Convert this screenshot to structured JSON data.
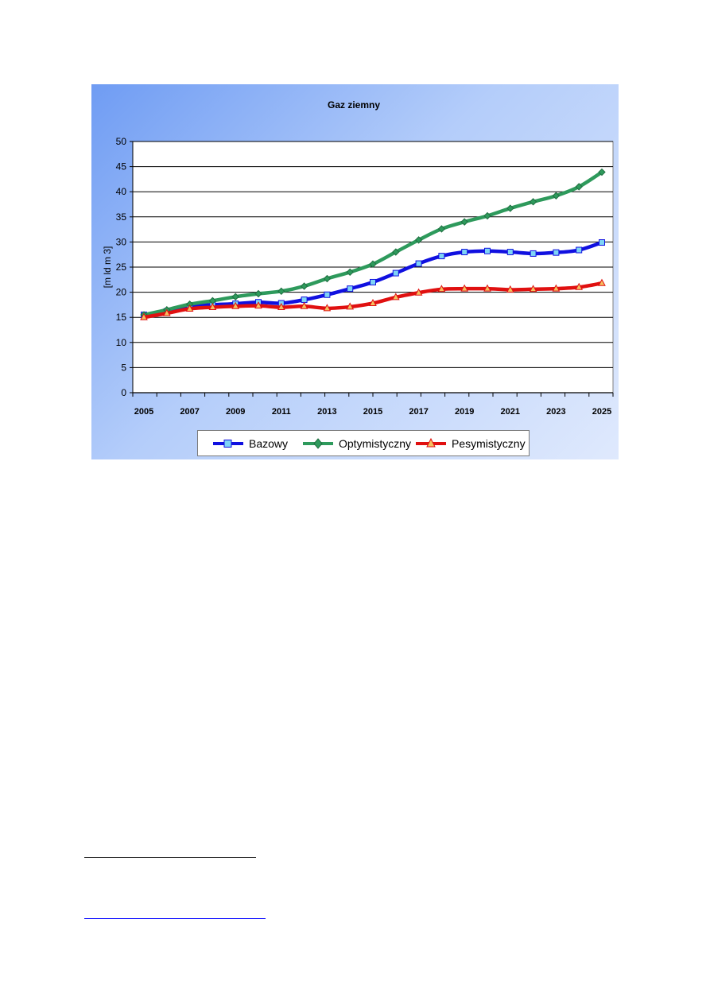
{
  "chart_data": {
    "type": "line",
    "title": "Gaz ziemny",
    "ylabel": "[m ld  m 3]",
    "xlabel": "",
    "ylim": [
      0,
      50
    ],
    "y_ticks": [
      0,
      5,
      10,
      15,
      20,
      25,
      30,
      35,
      40,
      45,
      50
    ],
    "x_ticks": [
      2005,
      2007,
      2009,
      2011,
      2013,
      2015,
      2017,
      2019,
      2021,
      2023,
      2025
    ],
    "x": [
      2005,
      2006,
      2007,
      2008,
      2009,
      2010,
      2011,
      2012,
      2013,
      2014,
      2015,
      2016,
      2017,
      2018,
      2019,
      2020,
      2021,
      2022,
      2023,
      2024,
      2025
    ],
    "grid": "horizontal",
    "legend_position": "bottom",
    "series": [
      {
        "name": "Bazowy",
        "color": "#1010e0",
        "marker": "square-icon",
        "marker_fill": "#7fd4f5",
        "values": [
          15.5,
          16.2,
          17.2,
          17.5,
          17.7,
          18.0,
          17.8,
          18.5,
          19.5,
          20.7,
          22.0,
          23.8,
          25.7,
          27.2,
          28.0,
          28.2,
          28.0,
          27.7,
          27.9,
          28.4,
          29.9
        ]
      },
      {
        "name": "Optymistyczny",
        "color": "#2e9a5c",
        "marker": "diamond-icon",
        "marker_fill": "#2e9a5c",
        "values": [
          15.5,
          16.5,
          17.6,
          18.3,
          19.1,
          19.7,
          20.2,
          21.2,
          22.7,
          24.0,
          25.6,
          28.0,
          30.4,
          32.6,
          34.0,
          35.2,
          36.7,
          38.0,
          39.2,
          41.0,
          43.9
        ]
      },
      {
        "name": "Pesymistyczny",
        "color": "#e01010",
        "marker": "triangle-icon",
        "marker_fill": "#f5c060",
        "values": [
          15.0,
          15.8,
          16.7,
          17.0,
          17.2,
          17.3,
          17.0,
          17.2,
          16.8,
          17.1,
          17.8,
          19.0,
          19.9,
          20.6,
          20.7,
          20.7,
          20.5,
          20.6,
          20.7,
          21.0,
          21.8
        ]
      }
    ]
  }
}
